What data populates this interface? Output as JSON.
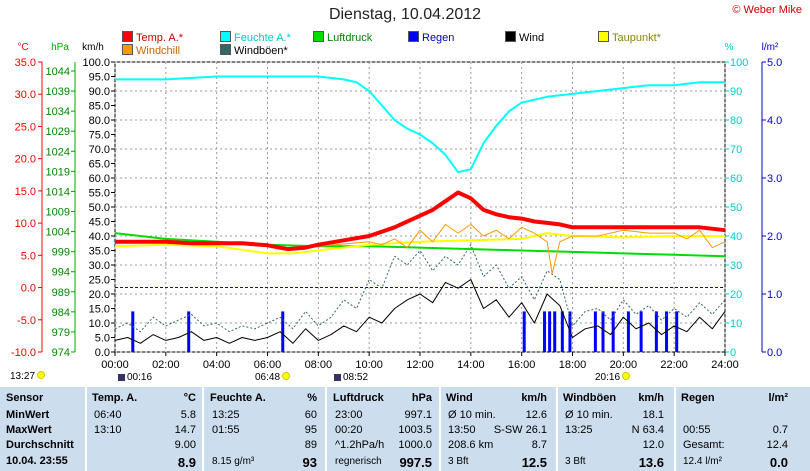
{
  "title": "Dienstag, 10.04.2012",
  "copyright": "© Weber Mike",
  "legend": [
    {
      "label": "Temp. A.*",
      "color": "#ff0000",
      "text_color": "#cc0000"
    },
    {
      "label": "Feuchte A.*",
      "color": "#00ffff",
      "text_color": "#00cccc"
    },
    {
      "label": "Luftdruck",
      "color": "#00dd00",
      "text_color": "#008800"
    },
    {
      "label": "Regen",
      "color": "#0000ff",
      "text_color": "#0000cc"
    },
    {
      "label": "Wind",
      "color": "#000000",
      "text_color": "#000000"
    },
    {
      "label": "Taupunkt*",
      "color": "#ffff00",
      "text_color": "#888800"
    },
    {
      "label": "Windchill",
      "color": "#ff9900",
      "text_color": "#cc6600"
    },
    {
      "label": "Windböen*",
      "color": "#336666",
      "text_color": "#000000"
    }
  ],
  "events": [
    {
      "time": "13:27",
      "icon": "sun"
    },
    {
      "time": "00:16",
      "icon": "moon"
    },
    {
      "time": "06:48",
      "icon": "sun"
    },
    {
      "time": "08:52",
      "icon": "moon"
    },
    {
      "time": "20:16",
      "icon": "sun"
    }
  ],
  "chart_data": {
    "type": "line",
    "x_axis": {
      "label": "",
      "ticks": [
        "00:00",
        "02:00",
        "04:00",
        "06:00",
        "08:00",
        "10:00",
        "12:00",
        "14:00",
        "16:00",
        "18:00",
        "20:00",
        "22:00",
        "24:00"
      ],
      "range": [
        0,
        24
      ]
    },
    "axes": {
      "temp_c": {
        "unit": "°C",
        "range": [
          -10,
          35
        ],
        "ticks": [
          "35.0",
          "30.0",
          "25.0",
          "20.0",
          "15.0",
          "10.0",
          "5.0",
          "0.0",
          "-5.0",
          "-10.0"
        ]
      },
      "pressure_hpa": {
        "unit": "hPa",
        "ticks": [
          "1044",
          "1039",
          "1034",
          "1029",
          "1024",
          "1019",
          "1014",
          "1009",
          "1004",
          "999",
          "994",
          "989",
          "984",
          "979",
          "974"
        ]
      },
      "wind_kmh": {
        "unit": "km/h",
        "range": [
          0,
          100
        ],
        "ticks": [
          "100.0",
          "95.0",
          "90.0",
          "85.0",
          "80.0",
          "75.0",
          "70.0",
          "65.0",
          "60.0",
          "55.0",
          "50.0",
          "45.0",
          "40.0",
          "35.0",
          "30.0",
          "25.0",
          "20.0",
          "15.0",
          "10.0",
          "5.0",
          "0.0"
        ]
      },
      "humidity_pct": {
        "unit": "%",
        "range": [
          0,
          100
        ],
        "ticks": [
          "100",
          "90",
          "80",
          "70",
          "60",
          "50",
          "40",
          "30",
          "20",
          "10",
          "0"
        ]
      },
      "rain_lm2": {
        "unit": "l/m²",
        "range": [
          0,
          5
        ],
        "ticks": [
          "5.0",
          "4.0",
          "3.0",
          "2.0",
          "1.0",
          "0.0"
        ]
      }
    },
    "series": [
      {
        "name": "Temp. A.*",
        "axis": "wind_kmh",
        "color": "#ff0000",
        "width": 4,
        "x": [
          0,
          1,
          2,
          3,
          4,
          5,
          6,
          6.8,
          7.5,
          8,
          9,
          10,
          11,
          12,
          12.5,
          13,
          13.5,
          14,
          14.5,
          15,
          15.5,
          16,
          16.5,
          17,
          17.5,
          18,
          19,
          20,
          21,
          22,
          23,
          24
        ],
        "y": [
          38,
          38,
          38,
          37.5,
          37.5,
          37.5,
          36.8,
          35.5,
          36,
          37,
          38.5,
          40,
          43,
          47,
          49,
          52,
          55,
          53,
          49,
          47.5,
          46.5,
          46,
          45,
          44.5,
          44,
          43,
          43,
          43,
          43,
          43,
          43,
          42
        ]
      },
      {
        "name": "Feuchte A.*",
        "axis": "wind_kmh",
        "color": "#00ffff",
        "width": 2,
        "x": [
          0,
          2,
          4,
          6,
          8,
          9,
          9.5,
          10,
          10.5,
          11,
          11.5,
          12,
          12.5,
          13,
          13.5,
          14,
          14.5,
          15,
          15.5,
          16,
          17,
          18,
          19,
          20,
          21,
          22,
          23,
          24
        ],
        "y": [
          94,
          94,
          95,
          95,
          95,
          94,
          93,
          90,
          85,
          80,
          77,
          75,
          72,
          68,
          62,
          63,
          72,
          78,
          83,
          86,
          88,
          89,
          90,
          91,
          92,
          92,
          93,
          93
        ]
      },
      {
        "name": "Luftdruck",
        "axis": "wind_kmh",
        "color": "#00dd00",
        "width": 2,
        "x": [
          0,
          2,
          4,
          6,
          8,
          10,
          12,
          14,
          16,
          18,
          20,
          22,
          24
        ],
        "y": [
          41,
          39,
          38,
          37,
          36.5,
          36.5,
          36,
          35.5,
          35,
          34.5,
          34,
          33.5,
          33
        ]
      },
      {
        "name": "Taupunkt*",
        "axis": "wind_kmh",
        "color": "#ffff00",
        "width": 2,
        "x": [
          0,
          2,
          4,
          6,
          7,
          8,
          10,
          12,
          14,
          16,
          17,
          18,
          20,
          22,
          24
        ],
        "y": [
          36.5,
          37,
          36.5,
          34,
          34,
          35,
          37,
          38,
          38.5,
          39,
          41,
          40,
          39.5,
          40,
          40
        ]
      },
      {
        "name": "Windchill",
        "axis": "wind_kmh",
        "color": "#ff9900",
        "width": 1,
        "x": [
          0,
          2,
          4,
          6,
          7,
          8,
          10,
          10.5,
          11,
          11.5,
          12,
          12.5,
          13,
          13.5,
          14,
          14.5,
          15,
          15.5,
          16,
          16.5,
          17,
          17.2,
          17.5,
          18,
          19,
          20,
          21,
          22,
          22.5,
          23,
          23.5,
          24
        ],
        "y": [
          38,
          38,
          37.5,
          36.5,
          35.5,
          36.5,
          38,
          37,
          39,
          36,
          42,
          38,
          44,
          41,
          44,
          40,
          42,
          39,
          43,
          41,
          38,
          27,
          38,
          40,
          40,
          42,
          41,
          41,
          39,
          42,
          36,
          38
        ]
      },
      {
        "name": "Wind",
        "axis": "wind_kmh",
        "color": "#000000",
        "width": 1,
        "x": [
          0,
          0.5,
          1,
          1.5,
          2,
          2.5,
          3,
          3.5,
          4,
          4.5,
          5,
          5.5,
          6,
          6.5,
          7,
          7.5,
          8,
          8.5,
          9,
          9.5,
          10,
          10.5,
          11,
          11.5,
          12,
          12.5,
          13,
          13.5,
          14,
          14.5,
          15,
          15.5,
          16,
          16.5,
          17,
          17.5,
          18,
          18.5,
          19,
          19.5,
          20,
          20.5,
          21,
          21.5,
          22,
          22.5,
          23,
          23.5,
          24
        ],
        "y": [
          4,
          5,
          3,
          6,
          4,
          5,
          7,
          4,
          5,
          3,
          5,
          4,
          5,
          7,
          3,
          8,
          4,
          6,
          9,
          7,
          12,
          10,
          15,
          18,
          20,
          17,
          24,
          22,
          25,
          15,
          18,
          12,
          17,
          10,
          20,
          16,
          5,
          8,
          9,
          6,
          12,
          8,
          10,
          6,
          9,
          7,
          12,
          8,
          14
        ]
      },
      {
        "name": "Windböen*",
        "axis": "wind_kmh",
        "color": "#336666",
        "width": 1,
        "dashed": true,
        "x": [
          0,
          0.5,
          1,
          1.5,
          2,
          2.5,
          3,
          3.5,
          4,
          4.5,
          5,
          5.5,
          6,
          6.5,
          7,
          7.5,
          8,
          8.5,
          9,
          9.5,
          10,
          10.5,
          11,
          11.5,
          12,
          12.5,
          13,
          13.5,
          14,
          14.5,
          15,
          15.5,
          16,
          16.5,
          17,
          17.5,
          18,
          18.5,
          19,
          19.5,
          20,
          20.5,
          21,
          21.5,
          22,
          22.5,
          23,
          23.5,
          24
        ],
        "y": [
          8,
          10,
          7,
          12,
          9,
          11,
          13,
          9,
          10,
          7,
          9,
          8,
          10,
          12,
          8,
          14,
          9,
          12,
          18,
          15,
          25,
          22,
          33,
          30,
          35,
          28,
          33,
          30,
          37,
          26,
          30,
          22,
          26,
          18,
          28,
          25,
          9,
          14,
          15,
          11,
          18,
          13,
          16,
          11,
          15,
          12,
          17,
          13,
          18
        ]
      },
      {
        "name": "Regen",
        "axis": "rain_lm2",
        "color": "#0000ff",
        "type": "bars",
        "x": [
          0.7,
          2.9,
          6.6,
          16.1,
          16.9,
          17.1,
          17.3,
          17.6,
          17.9,
          18.9,
          19.2,
          19.6,
          20.2,
          20.7,
          21.3,
          21.7,
          22.1
        ],
        "y": [
          0.7,
          0.7,
          0.7,
          0.7,
          0.7,
          0.7,
          0.7,
          0.7,
          0.7,
          0.7,
          0.7,
          0.7,
          0.7,
          0.7,
          0.7,
          0.7,
          0.7
        ]
      }
    ],
    "reference_lines": [
      {
        "axis": "temp_c",
        "value": 0,
        "color": "#0000cc",
        "style": "dashed"
      }
    ],
    "grid": true
  },
  "table": {
    "headers": [
      {
        "name": "Sensor",
        "unit": ""
      },
      {
        "name": "Temp. A.",
        "unit": "°C"
      },
      {
        "name": "Feuchte A.",
        "unit": "%"
      },
      {
        "name": "Luftdruck",
        "unit": "hPa"
      },
      {
        "name": "Wind",
        "unit": "km/h"
      },
      {
        "name": "Windböen",
        "unit": "km/h"
      },
      {
        "name": "Regen",
        "unit": "l/m²"
      }
    ],
    "row_labels": [
      "MinWert",
      "MaxWert",
      "Durchschnitt",
      "10.04. 23:55"
    ],
    "temp": [
      [
        "06:40",
        "5.8"
      ],
      [
        "13:10",
        "14.7"
      ],
      [
        "",
        "9.00"
      ],
      [
        "",
        "8.9"
      ]
    ],
    "hum": [
      [
        "13:25",
        "60"
      ],
      [
        "01:55",
        "95"
      ],
      [
        "",
        "89"
      ],
      [
        "8.15 g/m³",
        "93"
      ]
    ],
    "press": [
      [
        "23:00",
        "997.1"
      ],
      [
        "00:20",
        "1003.5"
      ],
      [
        "^1.2hPa/h",
        "1000.0"
      ],
      [
        "regnerisch",
        "997.5"
      ]
    ],
    "wind": [
      [
        "Ø 10 min.",
        "12.6"
      ],
      [
        "13:50",
        "S-SW 26.1"
      ],
      [
        "208.6 km",
        "8.7"
      ],
      [
        "3 Bft",
        "12.5"
      ]
    ],
    "gust": [
      [
        "Ø 10 min.",
        "18.1"
      ],
      [
        "13:25",
        "N 63.4"
      ],
      [
        "",
        "12.0"
      ],
      [
        "3 Bft",
        "13.6"
      ]
    ],
    "rain": [
      [
        "",
        ""
      ],
      [
        "00:55",
        "0.7"
      ],
      [
        "Gesamt:",
        "12.4"
      ],
      [
        "12.4 l/m²",
        "0.0"
      ]
    ]
  }
}
